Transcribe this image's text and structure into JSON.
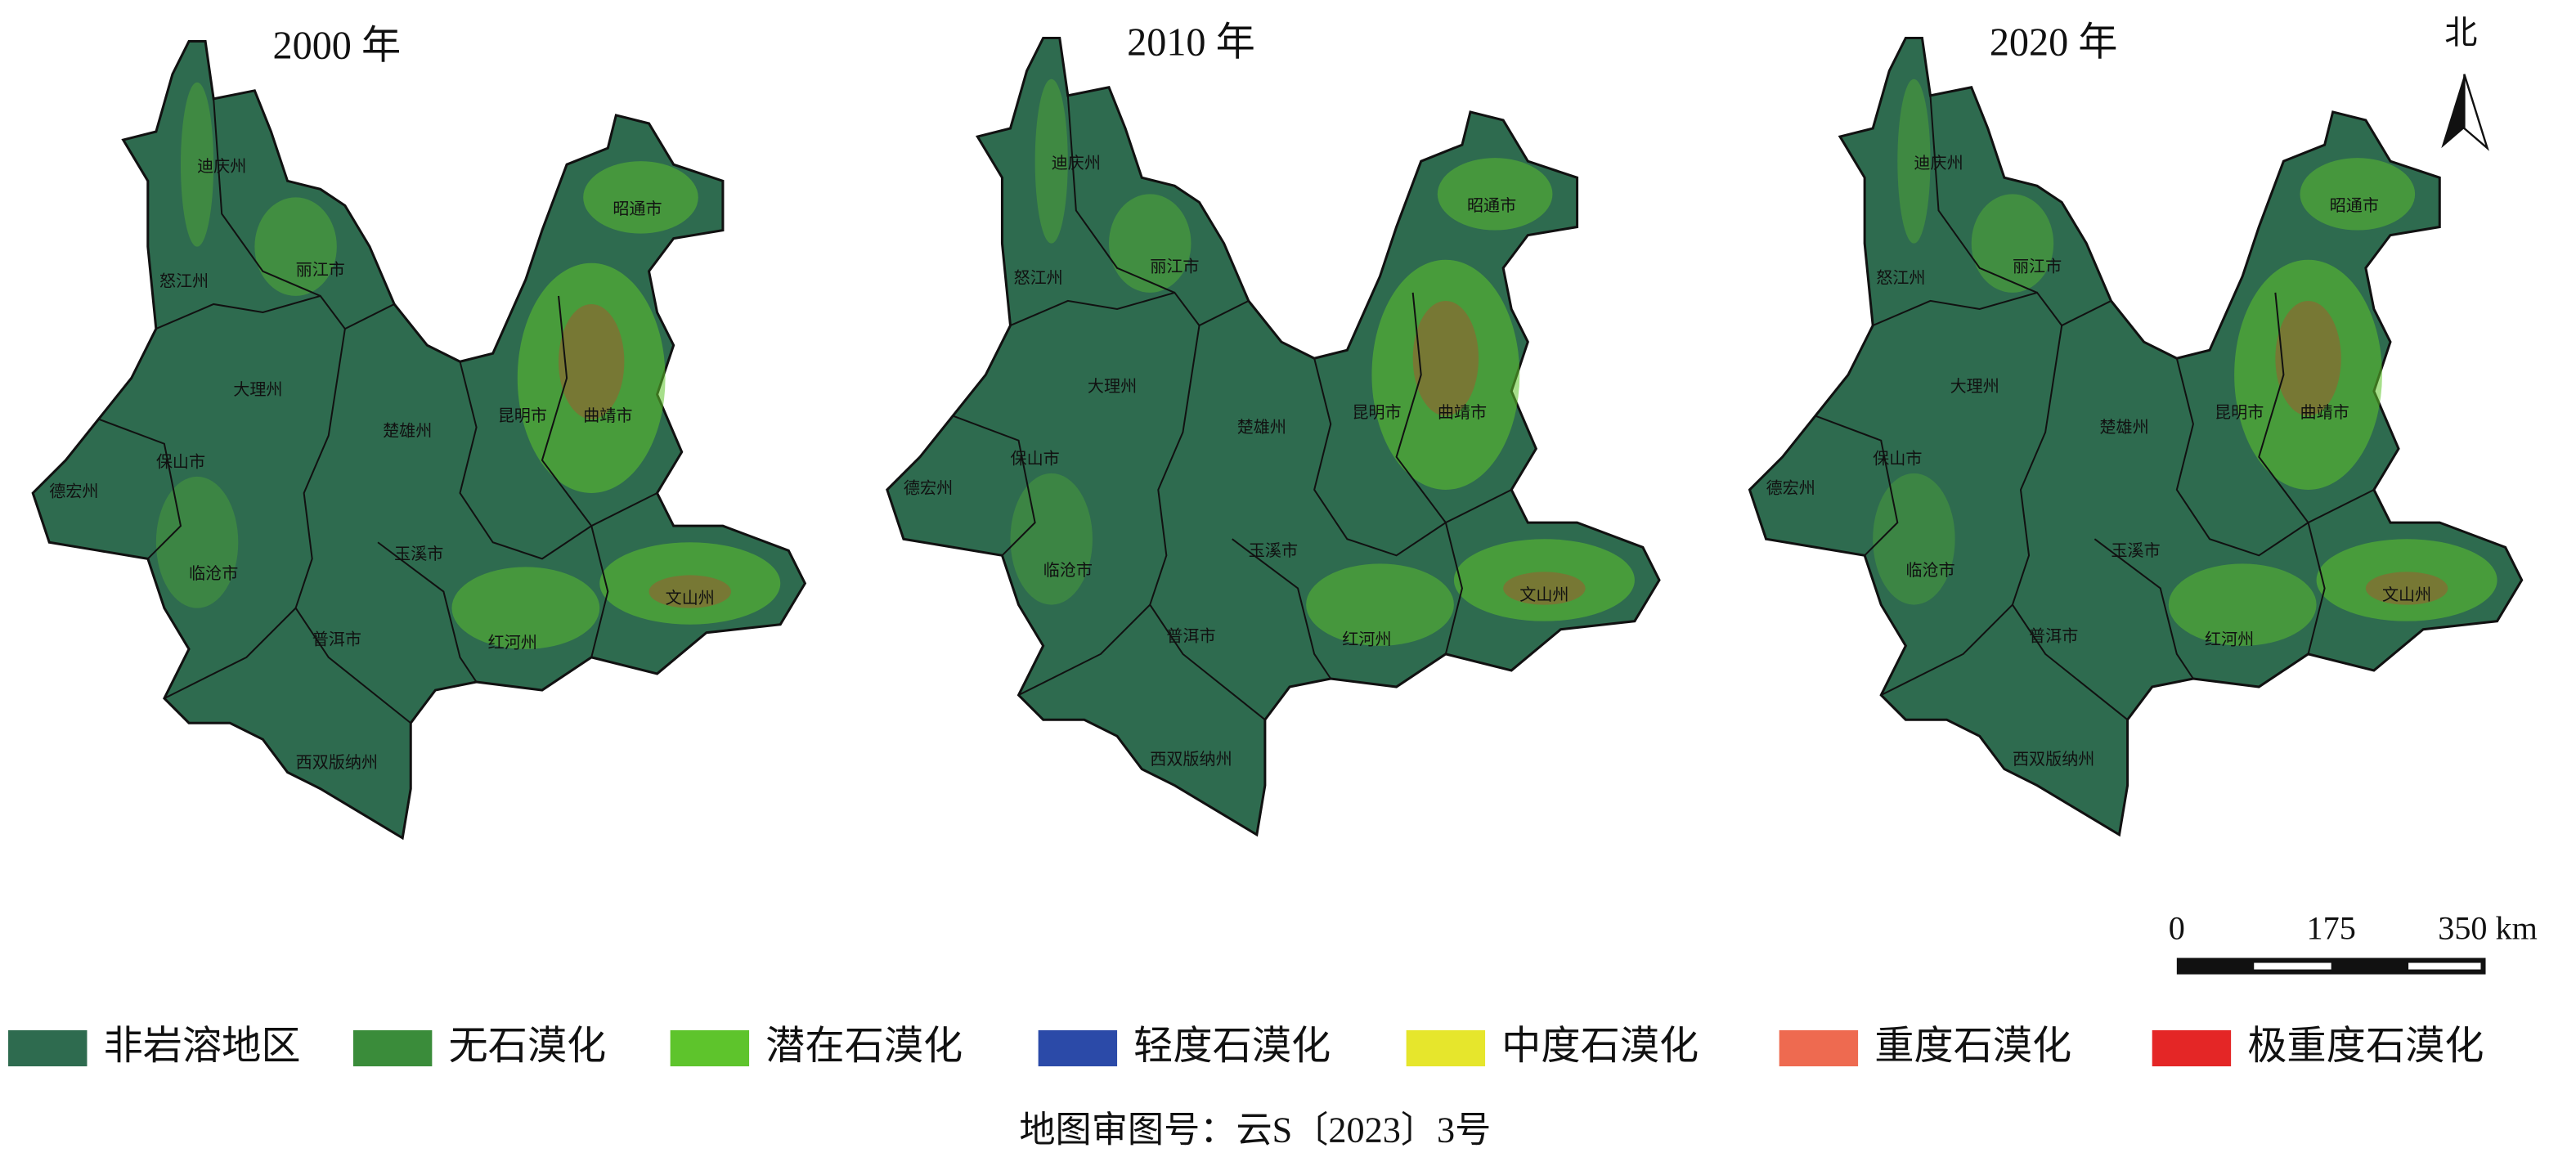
{
  "maps": [
    {
      "title": "2000 年",
      "regions": [
        "迪庆州",
        "怒江州",
        "丽江市",
        "昭通市",
        "大理州",
        "楚雄州",
        "昆明市",
        "曲靖市",
        "保山市",
        "德宏州",
        "临沧市",
        "玉溪市",
        "普洱市",
        "红河州",
        "文山州",
        "西双版纳州"
      ]
    },
    {
      "title": "2010 年",
      "regions": [
        "迪庆州",
        "怒江州",
        "丽江市",
        "昭通市",
        "大理州",
        "楚雄州",
        "昆明市",
        "曲靖市",
        "保山市",
        "德宏州",
        "临沧市",
        "玉溪市",
        "普洱市",
        "红河州",
        "文山州",
        "西双版纳州"
      ]
    },
    {
      "title": "2020 年",
      "regions": [
        "迪庆州",
        "怒江州",
        "丽江市",
        "昭通市",
        "大理州",
        "楚雄州",
        "昆明市",
        "曲靖市",
        "保山市",
        "德宏州",
        "临沧市",
        "玉溪市",
        "普洱市",
        "红河州",
        "文山州",
        "西双版纳州"
      ]
    }
  ],
  "north": "北",
  "scale_bar": {
    "labels": [
      "0",
      "175",
      "350 km"
    ]
  },
  "legend": [
    {
      "label": "非岩溶地区",
      "color": "#2e6b4f"
    },
    {
      "label": "无石漠化",
      "color": "#3a8c3a"
    },
    {
      "label": "潜在石漠化",
      "color": "#5ec42c"
    },
    {
      "label": "轻度石漠化",
      "color": "#2b4aa8"
    },
    {
      "label": "中度石漠化",
      "color": "#e6e62c"
    },
    {
      "label": "重度石漠化",
      "color": "#ee6a50"
    },
    {
      "label": "极重度石漠化",
      "color": "#e42626"
    }
  ],
  "footer": "地图审图号：云S〔2023〕3号"
}
